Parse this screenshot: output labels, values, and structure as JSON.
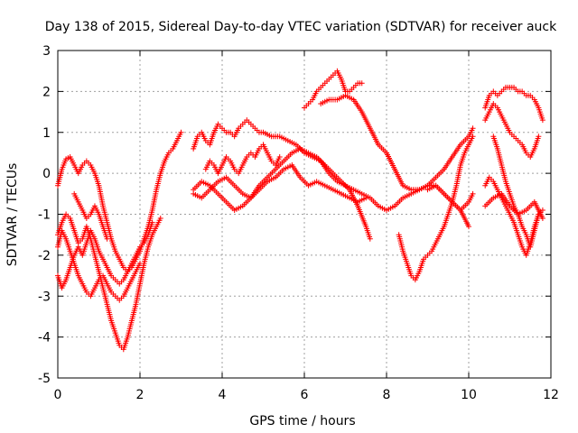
{
  "chart_data": {
    "type": "scatter",
    "title": "Day 138 of 2015, Sidereal Day-to-day VTEC variation (SDTVAR) for receiver auck",
    "xlabel": "GPS time / hours",
    "ylabel": "SDTVAR / TECUs",
    "xlim": [
      0,
      12
    ],
    "ylim": [
      -5,
      3
    ],
    "xticks": [
      "0",
      "2",
      "4",
      "6",
      "8",
      "10",
      "12"
    ],
    "yticks": [
      "-5",
      "-4",
      "-3",
      "-2",
      "-1",
      "0",
      "1",
      "2",
      "3"
    ],
    "grid": true,
    "marker": "plus",
    "color": "#ff0000",
    "series": [
      {
        "x": [
          0.0,
          0.1,
          0.2,
          0.3,
          0.4,
          0.5,
          0.6,
          0.7,
          0.8,
          0.9,
          1.0,
          1.1,
          1.2,
          1.3,
          1.4,
          1.5,
          1.6,
          1.7,
          1.8,
          1.9,
          2.0,
          2.1,
          2.2,
          2.3,
          2.4,
          2.5,
          2.6,
          2.7,
          2.8,
          2.9,
          3.0
        ],
        "y": [
          -0.3,
          0.1,
          0.35,
          0.4,
          0.2,
          0.0,
          0.2,
          0.3,
          0.2,
          0.0,
          -0.3,
          -0.8,
          -1.2,
          -1.6,
          -1.9,
          -2.1,
          -2.3,
          -2.4,
          -2.3,
          -2.1,
          -1.9,
          -1.6,
          -1.3,
          -0.9,
          -0.4,
          0.0,
          0.3,
          0.5,
          0.6,
          0.8,
          1.0
        ]
      },
      {
        "x": [
          0.0,
          0.1,
          0.2,
          0.3,
          0.4,
          0.5,
          0.6,
          0.7,
          0.8,
          0.9,
          1.0,
          1.1,
          1.2,
          1.3,
          1.4,
          1.5,
          1.6,
          1.7,
          1.8,
          1.9,
          2.0,
          2.1,
          2.2,
          2.3,
          2.4,
          2.5
        ],
        "y": [
          -1.5,
          -1.2,
          -1.0,
          -1.1,
          -1.4,
          -1.7,
          -1.6,
          -1.3,
          -1.6,
          -2.0,
          -2.4,
          -2.8,
          -3.2,
          -3.6,
          -3.9,
          -4.2,
          -4.3,
          -4.0,
          -3.6,
          -3.2,
          -2.7,
          -2.2,
          -1.8,
          -1.5,
          -1.3,
          -1.1
        ]
      },
      {
        "x": [
          0.0,
          0.1,
          0.2,
          0.3,
          0.4,
          0.5,
          0.6,
          0.7,
          0.8,
          0.9,
          1.0,
          1.1,
          1.2,
          1.3,
          1.4,
          1.5,
          1.6,
          1.7,
          1.8,
          1.9,
          2.0,
          2.1,
          2.2,
          2.3
        ],
        "y": [
          -2.5,
          -2.8,
          -2.6,
          -2.3,
          -2.0,
          -1.8,
          -2.0,
          -1.7,
          -1.4,
          -1.6,
          -1.9,
          -2.1,
          -2.3,
          -2.5,
          -2.6,
          -2.7,
          -2.6,
          -2.4,
          -2.2,
          -2.0,
          -1.8,
          -1.7,
          -1.5,
          -1.2
        ]
      },
      {
        "x": [
          0.0,
          0.1,
          0.2,
          0.3,
          0.4,
          0.5,
          0.6,
          0.7,
          0.8,
          0.9,
          1.0,
          1.1,
          1.2,
          1.3,
          1.4,
          1.5,
          1.6,
          1.7,
          1.8,
          1.9,
          2.0
        ],
        "y": [
          -1.8,
          -1.4,
          -1.6,
          -1.9,
          -2.2,
          -2.5,
          -2.7,
          -2.9,
          -3.0,
          -2.8,
          -2.6,
          -2.5,
          -2.7,
          -2.9,
          -3.0,
          -3.1,
          -3.0,
          -2.8,
          -2.6,
          -2.4,
          -2.2
        ]
      },
      {
        "x": [
          0.4,
          0.5,
          0.6,
          0.7,
          0.8,
          0.9,
          1.0,
          1.1,
          1.2
        ],
        "y": [
          -0.5,
          -0.7,
          -0.9,
          -1.1,
          -1.0,
          -0.8,
          -1.0,
          -1.3,
          -1.6
        ]
      },
      {
        "x": [
          3.3,
          3.4,
          3.5,
          3.6,
          3.7,
          3.8,
          3.9,
          4.0,
          4.1,
          4.2,
          4.3,
          4.4,
          4.5,
          4.6,
          4.7,
          4.8,
          4.9,
          5.0,
          5.2,
          5.4,
          5.6,
          5.8,
          6.0,
          6.2,
          6.4,
          6.6,
          6.8,
          7.0,
          7.2,
          7.4,
          7.6,
          7.8,
          8.0,
          8.2,
          8.4,
          8.6,
          8.8,
          9.0,
          9.2,
          9.4,
          9.6,
          9.8,
          10.0
        ],
        "y": [
          0.6,
          0.9,
          1.0,
          0.8,
          0.7,
          1.0,
          1.2,
          1.1,
          1.0,
          1.0,
          0.9,
          1.1,
          1.2,
          1.3,
          1.2,
          1.1,
          1.0,
          1.0,
          0.9,
          0.9,
          0.8,
          0.7,
          0.5,
          0.4,
          0.3,
          0.0,
          -0.2,
          -0.3,
          -0.4,
          -0.5,
          -0.6,
          -0.8,
          -0.9,
          -0.8,
          -0.6,
          -0.5,
          -0.4,
          -0.3,
          -0.3,
          -0.5,
          -0.7,
          -0.9,
          -1.3
        ]
      },
      {
        "x": [
          3.3,
          3.5,
          3.7,
          3.9,
          4.1,
          4.3,
          4.5,
          4.7,
          4.9,
          5.1,
          5.3,
          5.5,
          5.7,
          5.9,
          6.1,
          6.3,
          6.5,
          6.7,
          6.9,
          7.1,
          7.3,
          7.5,
          7.6
        ],
        "y": [
          -0.4,
          -0.2,
          -0.3,
          -0.5,
          -0.7,
          -0.9,
          -0.8,
          -0.6,
          -0.3,
          -0.1,
          0.1,
          0.3,
          0.5,
          0.6,
          0.5,
          0.4,
          0.2,
          0.0,
          -0.2,
          -0.4,
          -0.8,
          -1.3,
          -1.6
        ]
      },
      {
        "x": [
          3.3,
          3.5,
          3.7,
          3.9,
          4.1,
          4.3,
          4.5,
          4.7,
          4.9,
          5.1,
          5.3,
          5.5,
          5.7,
          5.9,
          6.1,
          6.3,
          6.5,
          6.7,
          6.9,
          7.1,
          7.3,
          7.5
        ],
        "y": [
          -0.5,
          -0.6,
          -0.4,
          -0.2,
          -0.1,
          -0.3,
          -0.5,
          -0.6,
          -0.4,
          -0.2,
          -0.1,
          0.1,
          0.2,
          -0.1,
          -0.3,
          -0.2,
          -0.3,
          -0.4,
          -0.5,
          -0.6,
          -0.7,
          -0.6
        ]
      },
      {
        "x": [
          3.6,
          3.7,
          3.8,
          3.9,
          4.0,
          4.1,
          4.2,
          4.3,
          4.4,
          4.5,
          4.6,
          4.7,
          4.8,
          4.9,
          5.0,
          5.1,
          5.2,
          5.3,
          5.4
        ],
        "y": [
          0.1,
          0.3,
          0.2,
          0.0,
          0.2,
          0.4,
          0.3,
          0.1,
          0.0,
          0.2,
          0.4,
          0.5,
          0.4,
          0.6,
          0.7,
          0.5,
          0.3,
          0.2,
          0.4
        ]
      },
      {
        "x": [
          6.0,
          6.1,
          6.2,
          6.3,
          6.4,
          6.5,
          6.6,
          6.7,
          6.8,
          6.9,
          7.0,
          7.1,
          7.2,
          7.3,
          7.4
        ],
        "y": [
          1.6,
          1.7,
          1.8,
          2.0,
          2.1,
          2.2,
          2.3,
          2.4,
          2.5,
          2.3,
          2.0,
          2.0,
          2.1,
          2.2,
          2.2
        ]
      },
      {
        "x": [
          6.4,
          6.6,
          6.8,
          7.0,
          7.2,
          7.4,
          7.6,
          7.8,
          8.0,
          8.2,
          8.4,
          8.6,
          8.8,
          9.0,
          9.2,
          9.4,
          9.6,
          9.8,
          10.0,
          10.1
        ],
        "y": [
          1.7,
          1.8,
          1.8,
          1.9,
          1.8,
          1.5,
          1.1,
          0.7,
          0.5,
          0.1,
          -0.3,
          -0.4,
          -0.4,
          -0.3,
          -0.1,
          0.1,
          0.4,
          0.7,
          0.9,
          1.1
        ]
      },
      {
        "x": [
          8.3,
          8.4,
          8.5,
          8.6,
          8.7,
          8.8,
          8.9,
          9.0,
          9.1,
          9.2,
          9.3,
          9.4,
          9.5,
          9.6,
          9.7,
          9.8,
          9.9,
          10.0,
          10.1
        ],
        "y": [
          -1.5,
          -1.9,
          -2.2,
          -2.5,
          -2.6,
          -2.4,
          -2.1,
          -2.0,
          -1.9,
          -1.7,
          -1.5,
          -1.3,
          -1.0,
          -0.7,
          -0.3,
          0.2,
          0.5,
          0.7,
          0.9
        ]
      },
      {
        "x": [
          9.0,
          9.2,
          9.4,
          9.6,
          9.8,
          10.0,
          10.1
        ],
        "y": [
          -0.4,
          -0.3,
          -0.5,
          -0.7,
          -0.9,
          -0.7,
          -0.5
        ]
      },
      {
        "x": [
          10.4,
          10.5,
          10.6,
          10.7,
          10.8,
          10.9,
          11.0,
          11.1,
          11.2,
          11.3,
          11.4,
          11.5,
          11.6,
          11.7,
          11.8
        ],
        "y": [
          1.6,
          1.9,
          2.0,
          1.9,
          2.0,
          2.1,
          2.1,
          2.1,
          2.0,
          2.0,
          1.9,
          1.9,
          1.8,
          1.6,
          1.3
        ]
      },
      {
        "x": [
          10.4,
          10.5,
          10.6,
          10.7,
          10.8,
          10.9,
          11.0,
          11.1,
          11.2,
          11.3,
          11.4,
          11.5,
          11.6,
          11.7
        ],
        "y": [
          1.3,
          1.5,
          1.7,
          1.6,
          1.4,
          1.2,
          1.0,
          0.9,
          0.8,
          0.7,
          0.5,
          0.4,
          0.6,
          0.9
        ]
      },
      {
        "x": [
          10.4,
          10.5,
          10.6,
          10.7,
          10.8,
          10.9,
          11.0,
          11.1,
          11.2,
          11.3,
          11.4,
          11.5,
          11.6,
          11.7,
          11.8
        ],
        "y": [
          -0.3,
          -0.1,
          -0.2,
          -0.4,
          -0.6,
          -0.8,
          -1.0,
          -1.2,
          -1.5,
          -1.8,
          -2.0,
          -1.7,
          -1.3,
          -1.0,
          -0.9
        ]
      },
      {
        "x": [
          10.4,
          10.6,
          10.8,
          11.0,
          11.2,
          11.4,
          11.6,
          11.8
        ],
        "y": [
          -0.8,
          -0.6,
          -0.5,
          -0.8,
          -1.0,
          -0.9,
          -0.7,
          -1.1
        ]
      },
      {
        "x": [
          10.6,
          10.7,
          10.8,
          10.9,
          11.0,
          11.1,
          11.2,
          11.3,
          11.4,
          11.5,
          11.6,
          11.7
        ],
        "y": [
          0.9,
          0.6,
          0.2,
          -0.2,
          -0.5,
          -0.8,
          -1.0,
          -1.3,
          -1.5,
          -1.8,
          -1.4,
          -1.0
        ]
      }
    ]
  }
}
